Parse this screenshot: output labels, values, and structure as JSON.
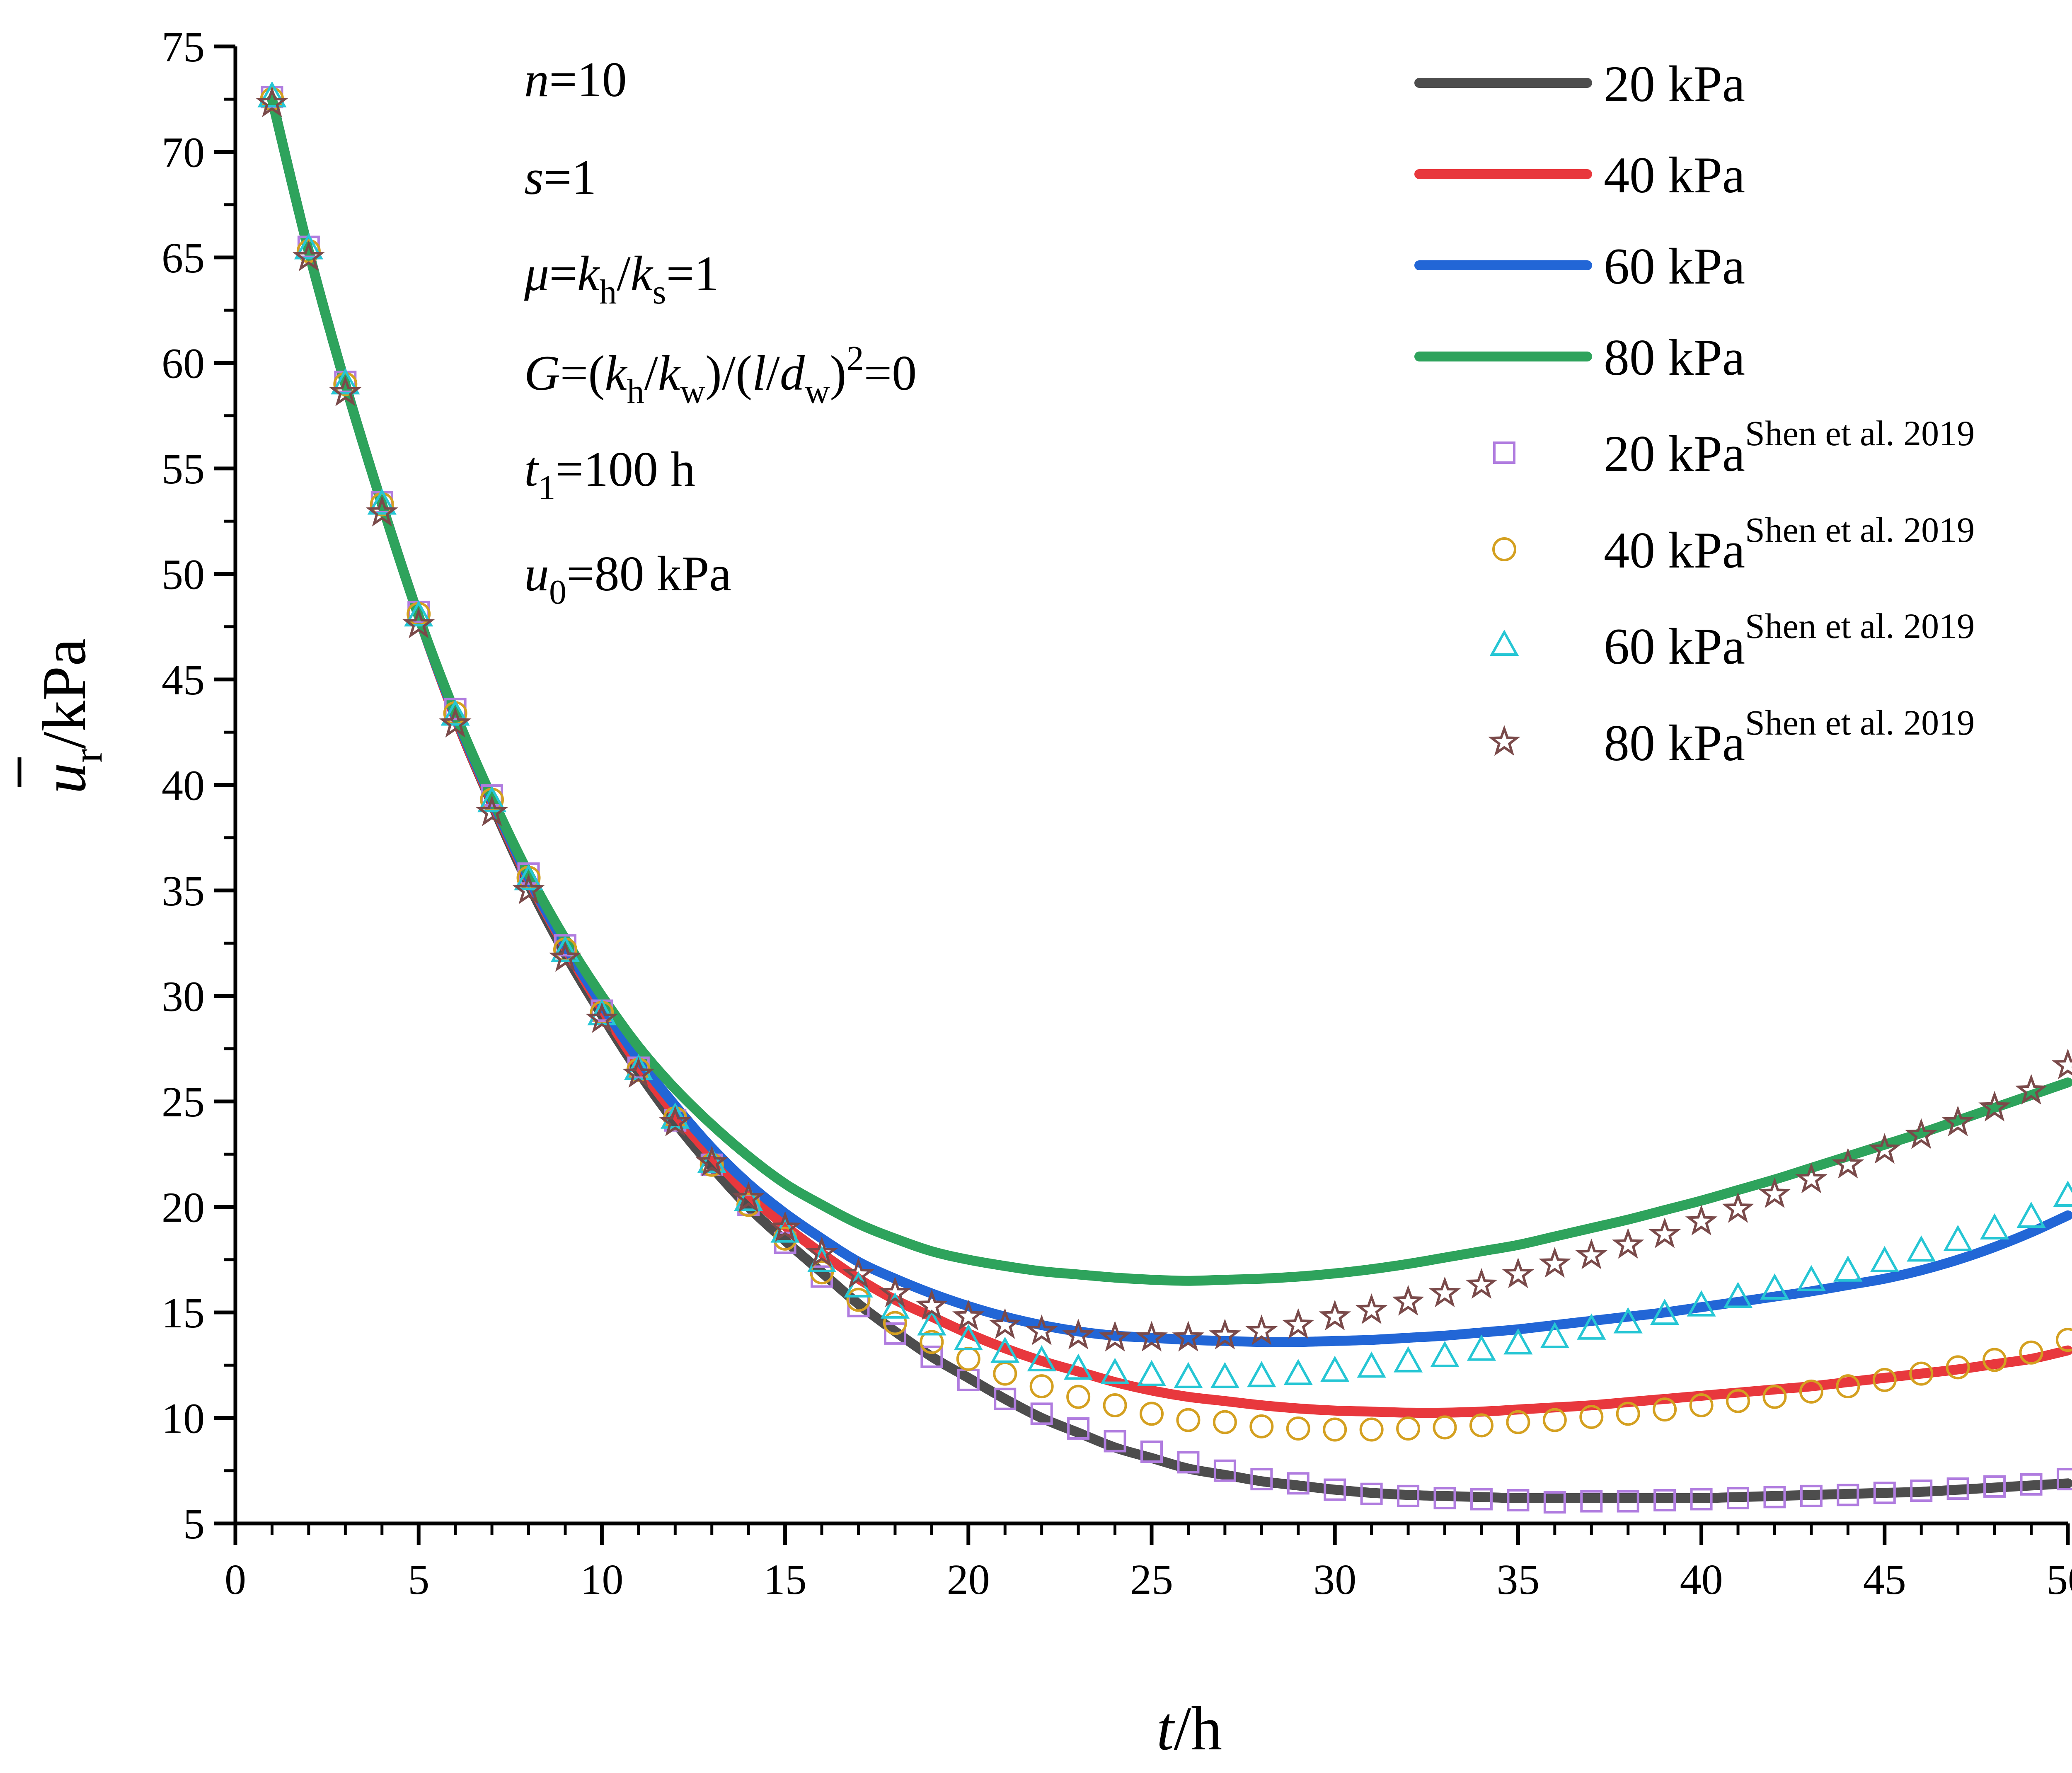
{
  "chart_data": {
    "type": "line",
    "title": "",
    "xlabel": {
      "var": "t",
      "unit": "/h"
    },
    "ylabel": {
      "var": "u",
      "sub": "r",
      "unit": "/kPa"
    },
    "xlim": [
      0,
      50
    ],
    "ylim": [
      5,
      75
    ],
    "xticks": [
      "0",
      "5",
      "10",
      "15",
      "20",
      "25",
      "30",
      "35",
      "40",
      "45",
      "50"
    ],
    "yticks": [
      "5",
      "10",
      "15",
      "20",
      "25",
      "30",
      "35",
      "40",
      "45",
      "50",
      "55",
      "60",
      "65",
      "70",
      "75"
    ],
    "grid": false,
    "legend_position": "top-right",
    "annotations": [
      {
        "parts": [
          [
            "n",
            "i"
          ],
          [
            "=10",
            ""
          ]
        ]
      },
      {
        "parts": [
          [
            "s",
            "i"
          ],
          [
            "=1",
            ""
          ]
        ]
      },
      {
        "parts": [
          [
            "μ",
            "i"
          ],
          [
            "=",
            ""
          ],
          [
            "k",
            "i"
          ],
          [
            "h",
            "sub"
          ],
          [
            "/",
            ""
          ],
          [
            "k",
            "i"
          ],
          [
            "s",
            "sub"
          ],
          [
            "=1",
            ""
          ]
        ]
      },
      {
        "parts": [
          [
            "G",
            "i"
          ],
          [
            "=(",
            ""
          ],
          [
            "k",
            "i"
          ],
          [
            "h",
            "sub"
          ],
          [
            "/",
            ""
          ],
          [
            "k",
            "i"
          ],
          [
            "w",
            "sub"
          ],
          [
            ")/(",
            ""
          ],
          [
            "l",
            "i"
          ],
          [
            "/",
            ""
          ],
          [
            "d",
            "i"
          ],
          [
            "w",
            "sub"
          ],
          [
            ")",
            ""
          ],
          [
            "2",
            "sup"
          ],
          [
            "=0",
            ""
          ]
        ]
      },
      {
        "parts": [
          [
            "t",
            "i"
          ],
          [
            "1",
            "sub"
          ],
          [
            "=100 h",
            ""
          ]
        ]
      },
      {
        "parts": [
          [
            "u",
            "i"
          ],
          [
            "0",
            "sub"
          ],
          [
            "=80 kPa",
            ""
          ]
        ]
      }
    ],
    "series": [
      {
        "name": "20 kPa",
        "kind": "line",
        "color": "#4d4d4d",
        "x": [
          1,
          2,
          3,
          4,
          5,
          6,
          7,
          8,
          9,
          10,
          11,
          12,
          13,
          14,
          15,
          16,
          17,
          18,
          19,
          20,
          21,
          22,
          23,
          24,
          25,
          26,
          27,
          28,
          29,
          30,
          31,
          32,
          33,
          34,
          35,
          36,
          37,
          38,
          39,
          40,
          41,
          42,
          43,
          44,
          45,
          46,
          47,
          48,
          49,
          50
        ],
        "y": [
          72.5,
          65.3,
          59.0,
          53.3,
          48.0,
          43.2,
          39.1,
          35.3,
          32.0,
          29.1,
          26.4,
          24.0,
          21.9,
          20.0,
          18.4,
          16.9,
          15.4,
          14.1,
          12.9,
          11.9,
          10.9,
          10.0,
          9.3,
          8.6,
          8.1,
          7.6,
          7.3,
          7.0,
          6.8,
          6.6,
          6.45,
          6.35,
          6.3,
          6.25,
          6.2,
          6.2,
          6.2,
          6.2,
          6.2,
          6.2,
          6.25,
          6.3,
          6.35,
          6.4,
          6.45,
          6.5,
          6.6,
          6.7,
          6.8,
          6.9
        ]
      },
      {
        "name": "40 kPa",
        "kind": "line",
        "color": "#e8383d",
        "x": [
          1,
          2,
          3,
          4,
          5,
          6,
          7,
          8,
          9,
          10,
          11,
          12,
          13,
          14,
          15,
          16,
          17,
          18,
          19,
          20,
          21,
          22,
          23,
          24,
          25,
          26,
          27,
          28,
          29,
          30,
          31,
          32,
          33,
          34,
          35,
          36,
          37,
          38,
          39,
          40,
          41,
          42,
          43,
          44,
          45,
          46,
          47,
          48,
          49,
          50
        ],
        "y": [
          72.5,
          65.3,
          59.0,
          53.3,
          48.0,
          43.2,
          39.2,
          35.5,
          32.3,
          29.4,
          26.7,
          24.4,
          22.4,
          20.6,
          19.1,
          17.8,
          16.6,
          15.6,
          14.8,
          14.0,
          13.3,
          12.7,
          12.2,
          11.7,
          11.3,
          11.0,
          10.8,
          10.6,
          10.45,
          10.35,
          10.3,
          10.25,
          10.25,
          10.3,
          10.4,
          10.5,
          10.6,
          10.75,
          10.9,
          11.05,
          11.2,
          11.35,
          11.5,
          11.7,
          11.9,
          12.1,
          12.3,
          12.55,
          12.8,
          13.2
        ]
      },
      {
        "name": "60 kPa",
        "kind": "line",
        "color": "#2266d6",
        "x": [
          1,
          2,
          3,
          4,
          5,
          6,
          7,
          8,
          9,
          10,
          11,
          12,
          13,
          14,
          15,
          16,
          17,
          18,
          19,
          20,
          21,
          22,
          23,
          24,
          25,
          26,
          27,
          28,
          29,
          30,
          31,
          32,
          33,
          34,
          35,
          36,
          37,
          38,
          39,
          40,
          41,
          42,
          43,
          44,
          45,
          46,
          47,
          48,
          49,
          50
        ],
        "y": [
          72.5,
          65.3,
          59.0,
          53.3,
          48.0,
          43.3,
          39.3,
          35.6,
          32.4,
          29.6,
          27.0,
          24.8,
          22.8,
          21.1,
          19.7,
          18.5,
          17.4,
          16.6,
          15.9,
          15.3,
          14.8,
          14.4,
          14.1,
          13.9,
          13.8,
          13.7,
          13.65,
          13.6,
          13.6,
          13.65,
          13.7,
          13.8,
          13.9,
          14.05,
          14.2,
          14.4,
          14.6,
          14.8,
          15.0,
          15.25,
          15.5,
          15.75,
          16.0,
          16.3,
          16.6,
          17.0,
          17.5,
          18.1,
          18.8,
          19.6
        ]
      },
      {
        "name": "80 kPa",
        "kind": "line",
        "color": "#2ea35c",
        "x": [
          1,
          2,
          3,
          4,
          5,
          6,
          7,
          8,
          9,
          10,
          11,
          12,
          13,
          14,
          15,
          16,
          17,
          18,
          19,
          20,
          21,
          22,
          23,
          24,
          25,
          26,
          27,
          28,
          29,
          30,
          31,
          32,
          33,
          34,
          35,
          36,
          37,
          38,
          39,
          40,
          41,
          42,
          43,
          44,
          45,
          46,
          47,
          48,
          49,
          50
        ],
        "y": [
          72.5,
          65.3,
          59.0,
          53.3,
          48.0,
          43.4,
          39.4,
          35.8,
          32.7,
          30.0,
          27.6,
          25.6,
          23.9,
          22.4,
          21.1,
          20.1,
          19.2,
          18.5,
          17.9,
          17.5,
          17.2,
          16.95,
          16.8,
          16.65,
          16.55,
          16.5,
          16.55,
          16.6,
          16.7,
          16.85,
          17.05,
          17.3,
          17.6,
          17.9,
          18.2,
          18.6,
          19.0,
          19.4,
          19.85,
          20.3,
          20.8,
          21.3,
          21.85,
          22.4,
          22.95,
          23.5,
          24.1,
          24.7,
          25.3,
          25.9
        ]
      },
      {
        "name": "20 kPa",
        "sup": "Shen et al. 2019",
        "kind": "marker",
        "marker": "square",
        "color": "#b07cdf",
        "x": [
          1,
          2,
          3,
          4,
          5,
          6,
          7,
          8,
          9,
          10,
          11,
          12,
          13,
          14,
          15,
          16,
          17,
          18,
          19,
          20,
          21,
          22,
          23,
          24,
          25,
          26,
          27,
          28,
          29,
          30,
          31,
          32,
          33,
          34,
          35,
          36,
          37,
          38,
          39,
          40,
          41,
          42,
          43,
          44,
          45,
          46,
          47,
          48,
          49,
          50
        ],
        "y": [
          72.6,
          65.5,
          59.1,
          53.4,
          48.2,
          43.6,
          39.5,
          35.8,
          32.4,
          29.3,
          26.6,
          24.1,
          22.0,
          20.1,
          18.3,
          16.7,
          15.3,
          14.0,
          12.9,
          11.8,
          10.9,
          10.2,
          9.5,
          8.9,
          8.4,
          7.9,
          7.5,
          7.1,
          6.9,
          6.6,
          6.4,
          6.3,
          6.2,
          6.15,
          6.1,
          6.0,
          6.05,
          6.05,
          6.1,
          6.15,
          6.2,
          6.25,
          6.3,
          6.35,
          6.45,
          6.55,
          6.65,
          6.75,
          6.85,
          7.1
        ]
      },
      {
        "name": "40 kPa",
        "sup": "Shen et al. 2019",
        "kind": "marker",
        "marker": "circle",
        "color": "#d4a020",
        "x": [
          1,
          2,
          3,
          4,
          5,
          6,
          7,
          8,
          9,
          10,
          11,
          12,
          13,
          14,
          15,
          16,
          17,
          18,
          19,
          20,
          21,
          22,
          23,
          24,
          25,
          26,
          27,
          28,
          29,
          30,
          31,
          32,
          33,
          34,
          35,
          36,
          37,
          38,
          39,
          40,
          41,
          42,
          43,
          44,
          45,
          46,
          47,
          48,
          49,
          50
        ],
        "y": [
          72.5,
          65.3,
          59.0,
          53.3,
          48.1,
          43.4,
          39.3,
          35.6,
          32.2,
          29.2,
          26.5,
          24.2,
          22.0,
          20.1,
          18.5,
          16.9,
          15.6,
          14.5,
          13.6,
          12.8,
          12.1,
          11.5,
          11.0,
          10.6,
          10.2,
          9.9,
          9.8,
          9.6,
          9.5,
          9.45,
          9.45,
          9.5,
          9.55,
          9.65,
          9.8,
          9.9,
          10.05,
          10.2,
          10.4,
          10.6,
          10.8,
          11.0,
          11.25,
          11.5,
          11.8,
          12.1,
          12.4,
          12.75,
          13.1,
          13.7
        ]
      },
      {
        "name": "60 kPa",
        "sup": "Shen et al. 2019",
        "kind": "marker",
        "marker": "triangle",
        "color": "#26c6d4",
        "x": [
          1,
          2,
          3,
          4,
          5,
          6,
          7,
          8,
          9,
          10,
          11,
          12,
          13,
          14,
          15,
          16,
          17,
          18,
          19,
          20,
          21,
          22,
          23,
          24,
          25,
          26,
          27,
          28,
          29,
          30,
          31,
          32,
          33,
          34,
          35,
          36,
          37,
          38,
          39,
          40,
          41,
          42,
          43,
          44,
          45,
          46,
          47,
          48,
          49,
          50
        ],
        "y": [
          72.6,
          65.4,
          59.0,
          53.3,
          48.0,
          43.3,
          39.2,
          35.5,
          32.1,
          29.1,
          26.5,
          24.2,
          22.1,
          20.3,
          18.8,
          17.4,
          16.2,
          15.2,
          14.4,
          13.7,
          13.1,
          12.7,
          12.3,
          12.1,
          12.0,
          11.9,
          11.9,
          11.95,
          12.05,
          12.2,
          12.4,
          12.65,
          12.9,
          13.2,
          13.5,
          13.8,
          14.2,
          14.5,
          14.9,
          15.3,
          15.7,
          16.1,
          16.5,
          16.95,
          17.4,
          17.9,
          18.4,
          18.95,
          19.5,
          20.5
        ]
      },
      {
        "name": "80 kPa",
        "sup": "Shen et al. 2019",
        "kind": "marker",
        "marker": "star",
        "color": "#7a4a4a",
        "x": [
          1,
          2,
          3,
          4,
          5,
          6,
          7,
          8,
          9,
          10,
          11,
          12,
          13,
          14,
          15,
          16,
          17,
          18,
          19,
          20,
          21,
          22,
          23,
          24,
          25,
          26,
          27,
          28,
          29,
          30,
          31,
          32,
          33,
          34,
          35,
          36,
          37,
          38,
          39,
          40,
          41,
          42,
          43,
          44,
          45,
          46,
          47,
          48,
          49,
          50
        ],
        "y": [
          72.3,
          65.0,
          58.6,
          52.9,
          47.6,
          42.9,
          38.7,
          35.0,
          31.8,
          28.9,
          26.3,
          24.0,
          22.1,
          20.4,
          19.0,
          17.8,
          16.8,
          15.9,
          15.3,
          14.8,
          14.4,
          14.1,
          13.9,
          13.8,
          13.8,
          13.8,
          13.9,
          14.1,
          14.4,
          14.8,
          15.1,
          15.5,
          15.9,
          16.3,
          16.8,
          17.3,
          17.7,
          18.2,
          18.7,
          19.3,
          19.9,
          20.6,
          21.3,
          22.0,
          22.7,
          23.4,
          24.0,
          24.7,
          25.5,
          26.7
        ]
      }
    ]
  }
}
